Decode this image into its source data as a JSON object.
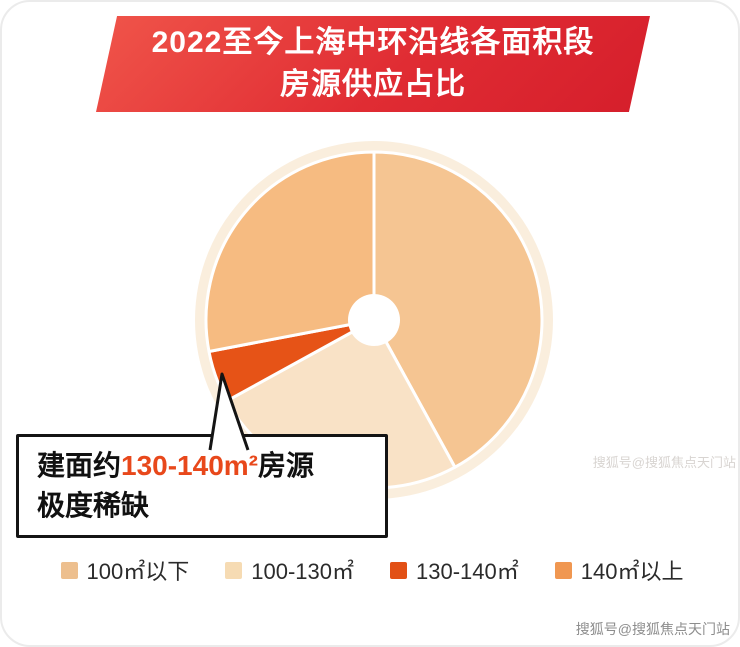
{
  "banner": {
    "line1": "2022至今上海中环沿线各面积段",
    "line2": "房源供应占比"
  },
  "chart_data": {
    "type": "pie",
    "title": "2022至今上海中环沿线各面积段房源供应占比",
    "start_angle_deg": 0,
    "direction": "clockwise",
    "donut": true,
    "unit": "percent (estimated from slice angles, no labels shown)",
    "slices": [
      {
        "label": "100㎡以下",
        "value": 42,
        "color": "#f5c592",
        "swatch": "#edbf8e"
      },
      {
        "label": "100-130㎡",
        "value": 25,
        "color": "#f9e2c6",
        "swatch": "#f6dbb3"
      },
      {
        "label": "130-140㎡",
        "value": 5,
        "color": "#e65317",
        "swatch": "#e25015"
      },
      {
        "label": "140㎡以上",
        "value": 28,
        "color": "#f6bb81",
        "swatch": "#f09751"
      }
    ],
    "legend_position": "bottom",
    "annotation": "建面约130-140m²房源极度稀缺"
  },
  "callout": {
    "prefix": "建面约",
    "highlight": "130-140m²",
    "suffix": "房源",
    "line2": "极度稀缺",
    "highlight_color": "#e8481b"
  },
  "colors": {
    "banner_red": "#d81f2d",
    "halo": "#faeedd"
  },
  "watermark": {
    "side": "搜狐号@搜狐焦点天门站",
    "corner": "搜狐号@搜狐焦点天门站"
  }
}
